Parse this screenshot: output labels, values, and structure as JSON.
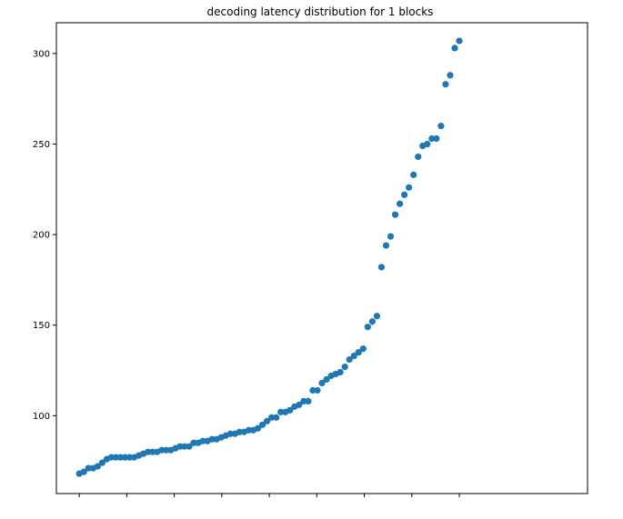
{
  "chart_data": {
    "type": "scatter",
    "title": "decoding latency distribution for 1 blocks",
    "xlabel": "",
    "ylabel": "",
    "marker_color": "#1f77b4",
    "ylim": [
      57,
      317
    ],
    "xlim": [
      -5,
      111
    ],
    "yticks": [
      100,
      150,
      200,
      250,
      300
    ],
    "xtick_count": 9,
    "grid": false,
    "legend": "none",
    "y": [
      68,
      69,
      71,
      71,
      72,
      74,
      76,
      77,
      77,
      77,
      77,
      77,
      77,
      78,
      79,
      80,
      80,
      80,
      81,
      81,
      81,
      82,
      83,
      83,
      83,
      85,
      85,
      86,
      86,
      87,
      87,
      88,
      89,
      90,
      90,
      91,
      91,
      92,
      92,
      93,
      95,
      97,
      99,
      99,
      102,
      102,
      103,
      105,
      106,
      108,
      108,
      114,
      114,
      118,
      120,
      122,
      123,
      124,
      127,
      131,
      133,
      135,
      137,
      149,
      152,
      155,
      182,
      194,
      199,
      211,
      217,
      222,
      226,
      233,
      243,
      249,
      250,
      253,
      253,
      260,
      283,
      288,
      303,
      307
    ]
  }
}
